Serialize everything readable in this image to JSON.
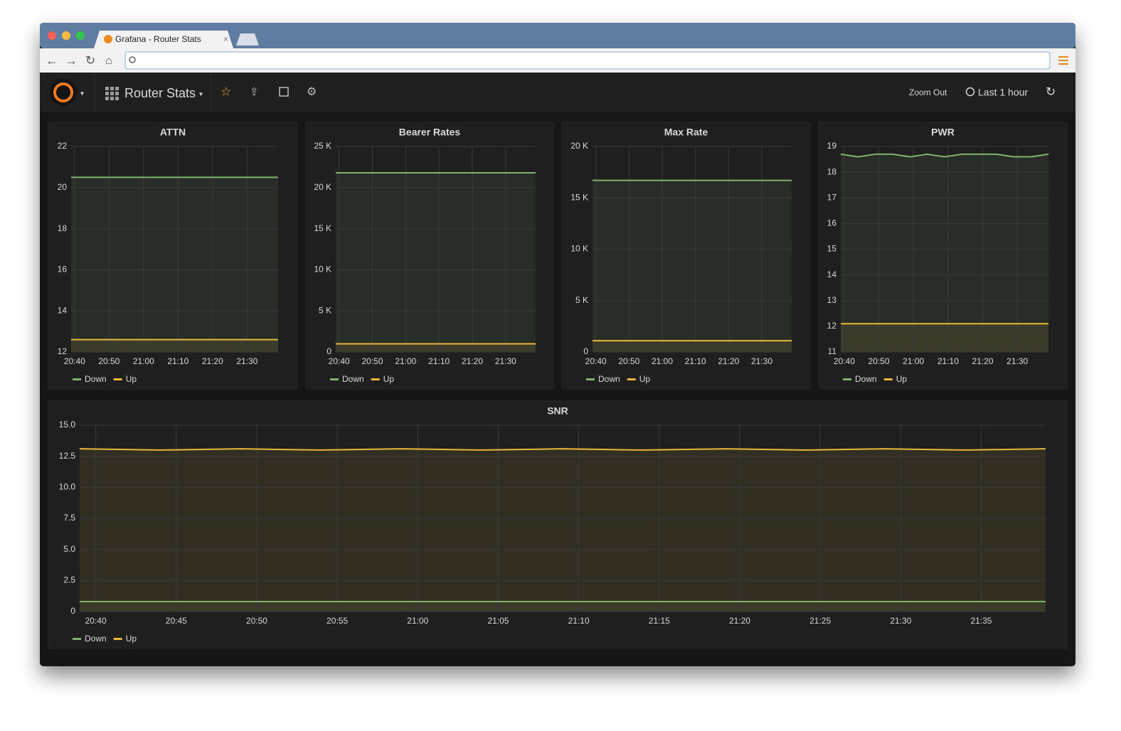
{
  "browser": {
    "tab_title": "Grafana - Router Stats"
  },
  "toolbar": {
    "dashboard_title": "Router Stats",
    "zoom_out": "Zoom Out",
    "time_range": "Last 1 hour"
  },
  "chart_data": [
    {
      "type": "line",
      "title": "ATTN",
      "x": [
        "20:39",
        "20:44",
        "20:49",
        "20:54",
        "20:59",
        "21:04",
        "21:09",
        "21:14",
        "21:19",
        "21:24",
        "21:29",
        "21:34",
        "21:39"
      ],
      "series": [
        {
          "name": "Down",
          "color": "#7eb26d",
          "values": [
            20.5,
            20.5,
            20.5,
            20.5,
            20.5,
            20.5,
            20.5,
            20.5,
            20.5,
            20.5,
            20.5,
            20.5,
            20.5
          ]
        },
        {
          "name": "Up",
          "color": "#eab839",
          "values": [
            12.6,
            12.6,
            12.6,
            12.6,
            12.6,
            12.6,
            12.6,
            12.6,
            12.6,
            12.6,
            12.6,
            12.6,
            12.6
          ]
        }
      ],
      "xlim": [
        "20:39",
        "21:39"
      ],
      "xticks": [
        "20:40",
        "20:50",
        "21:00",
        "21:10",
        "21:20",
        "21:30"
      ],
      "ylim": [
        12,
        22
      ],
      "yticks": [
        12,
        14,
        16,
        18,
        20,
        22
      ],
      "grid": true
    },
    {
      "type": "line",
      "title": "Bearer Rates",
      "x": [
        "20:39",
        "20:44",
        "20:49",
        "20:54",
        "20:59",
        "21:04",
        "21:09",
        "21:14",
        "21:19",
        "21:24",
        "21:29",
        "21:34",
        "21:39"
      ],
      "series": [
        {
          "name": "Down",
          "color": "#7eb26d",
          "values": [
            21800,
            21800,
            21800,
            21800,
            21800,
            21800,
            21800,
            21800,
            21800,
            21800,
            21800,
            21800,
            21800
          ]
        },
        {
          "name": "Up",
          "color": "#eab839",
          "values": [
            1000,
            1000,
            1000,
            1000,
            1000,
            1000,
            1000,
            1000,
            1000,
            1000,
            1000,
            1000,
            1000
          ]
        }
      ],
      "xlim": [
        "20:39",
        "21:39"
      ],
      "xticks": [
        "20:40",
        "20:50",
        "21:00",
        "21:10",
        "21:20",
        "21:30"
      ],
      "ylim": [
        0,
        25000
      ],
      "yticks": [
        0,
        {
          "value": 5000,
          "label": "5 K"
        },
        {
          "value": 10000,
          "label": "10 K"
        },
        {
          "value": 15000,
          "label": "15 K"
        },
        {
          "value": 20000,
          "label": "20 K"
        },
        {
          "value": 25000,
          "label": "25 K"
        }
      ],
      "grid": true
    },
    {
      "type": "line",
      "title": "Max Rate",
      "x": [
        "20:39",
        "20:44",
        "20:49",
        "20:54",
        "20:59",
        "21:04",
        "21:09",
        "21:14",
        "21:19",
        "21:24",
        "21:29",
        "21:34",
        "21:39"
      ],
      "series": [
        {
          "name": "Down",
          "color": "#7eb26d",
          "values": [
            16700,
            16700,
            16700,
            16700,
            16700,
            16700,
            16700,
            16700,
            16700,
            16700,
            16700,
            16700,
            16700
          ]
        },
        {
          "name": "Up",
          "color": "#eab839",
          "values": [
            1100,
            1100,
            1100,
            1100,
            1100,
            1100,
            1100,
            1100,
            1100,
            1100,
            1100,
            1100,
            1100
          ]
        }
      ],
      "xlim": [
        "20:39",
        "21:39"
      ],
      "xticks": [
        "20:40",
        "20:50",
        "21:00",
        "21:10",
        "21:20",
        "21:30"
      ],
      "ylim": [
        0,
        20000
      ],
      "yticks": [
        0,
        {
          "value": 5000,
          "label": "5 K"
        },
        {
          "value": 10000,
          "label": "10 K"
        },
        {
          "value": 15000,
          "label": "15 K"
        },
        {
          "value": 20000,
          "label": "20 K"
        }
      ],
      "grid": true
    },
    {
      "type": "line",
      "title": "PWR",
      "x": [
        "20:39",
        "20:44",
        "20:49",
        "20:54",
        "20:59",
        "21:04",
        "21:09",
        "21:14",
        "21:19",
        "21:24",
        "21:29",
        "21:34",
        "21:39"
      ],
      "series": [
        {
          "name": "Down",
          "color": "#7eb26d",
          "values": [
            18.7,
            18.6,
            18.7,
            18.7,
            18.6,
            18.7,
            18.6,
            18.7,
            18.7,
            18.7,
            18.6,
            18.6,
            18.7
          ]
        },
        {
          "name": "Up",
          "color": "#eab839",
          "values": [
            12.1,
            12.1,
            12.1,
            12.1,
            12.1,
            12.1,
            12.1,
            12.1,
            12.1,
            12.1,
            12.1,
            12.1,
            12.1
          ]
        }
      ],
      "xlim": [
        "20:39",
        "21:39"
      ],
      "xticks": [
        "20:40",
        "20:50",
        "21:00",
        "21:10",
        "21:20",
        "21:30"
      ],
      "ylim": [
        11,
        19
      ],
      "yticks": [
        11,
        12,
        13,
        14,
        15,
        16,
        17,
        18,
        19
      ],
      "grid": true
    },
    {
      "type": "line",
      "title": "SNR",
      "x": [
        "20:39",
        "20:44",
        "20:49",
        "20:54",
        "20:59",
        "21:04",
        "21:09",
        "21:14",
        "21:19",
        "21:24",
        "21:29",
        "21:34",
        "21:39"
      ],
      "series": [
        {
          "name": "Down",
          "color": "#7eb26d",
          "values": [
            0.8,
            0.8,
            0.8,
            0.8,
            0.8,
            0.8,
            0.8,
            0.8,
            0.8,
            0.8,
            0.8,
            0.8,
            0.8
          ]
        },
        {
          "name": "Up",
          "color": "#eab839",
          "values": [
            13.1,
            13.0,
            13.1,
            13.0,
            13.1,
            13.0,
            13.1,
            13.0,
            13.1,
            13.0,
            13.1,
            13.0,
            13.1
          ]
        }
      ],
      "xlim": [
        "20:39",
        "21:39"
      ],
      "xticks": [
        "20:40",
        "20:45",
        "20:50",
        "20:55",
        "21:00",
        "21:05",
        "21:10",
        "21:15",
        "21:20",
        "21:25",
        "21:30",
        "21:35"
      ],
      "ylim": [
        0,
        15
      ],
      "yticks": [
        0,
        {
          "value": 2.5,
          "label": "2.5"
        },
        {
          "value": 5,
          "label": "5.0"
        },
        {
          "value": 7.5,
          "label": "7.5"
        },
        {
          "value": 10,
          "label": "10.0"
        },
        {
          "value": 12.5,
          "label": "12.5"
        },
        {
          "value": 15,
          "label": "15.0"
        }
      ],
      "grid": true
    }
  ]
}
